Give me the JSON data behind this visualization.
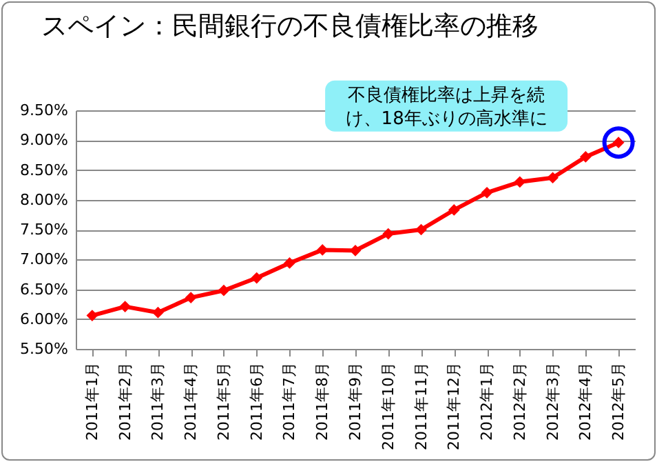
{
  "chart_data": {
    "type": "line",
    "title": "スペイン：民間銀行の不良債権比率の推移",
    "categories": [
      "2011年1月",
      "2011年2月",
      "2011年3月",
      "2011年4月",
      "2011年5月",
      "2011年6月",
      "2011年7月",
      "2011年8月",
      "2011年9月",
      "2011年10月",
      "2011年11月",
      "2011年12月",
      "2012年1月",
      "2012年2月",
      "2012年3月",
      "2012年4月",
      "2012年5月"
    ],
    "series": [
      {
        "color": "#ff0000",
        "values": [
          6.06,
          6.21,
          6.11,
          6.36,
          6.48,
          6.69,
          6.94,
          7.16,
          7.15,
          7.43,
          7.5,
          7.83,
          8.12,
          8.3,
          8.37,
          8.72,
          8.96
        ]
      }
    ],
    "ylim": [
      5.5,
      9.5
    ],
    "yticks": [
      {
        "value": 5.5,
        "label": "5.50%"
      },
      {
        "value": 6,
        "label": "6.00%"
      },
      {
        "value": 6.5,
        "label": "6.50%"
      },
      {
        "value": 7,
        "label": "7.00%"
      },
      {
        "value": 7.5,
        "label": "7.50%"
      },
      {
        "value": 8,
        "label": "8.00%"
      },
      {
        "value": 8.5,
        "label": "8.50%"
      },
      {
        "value": 9,
        "label": "9.00%"
      },
      {
        "value": 9.5,
        "label": "9.50%"
      }
    ],
    "grid": "y",
    "marker": "diamond",
    "line_style": "solid",
    "annotations": [
      "不良債権比率は上昇を続け、18年ぶりの高水準に"
    ]
  }
}
